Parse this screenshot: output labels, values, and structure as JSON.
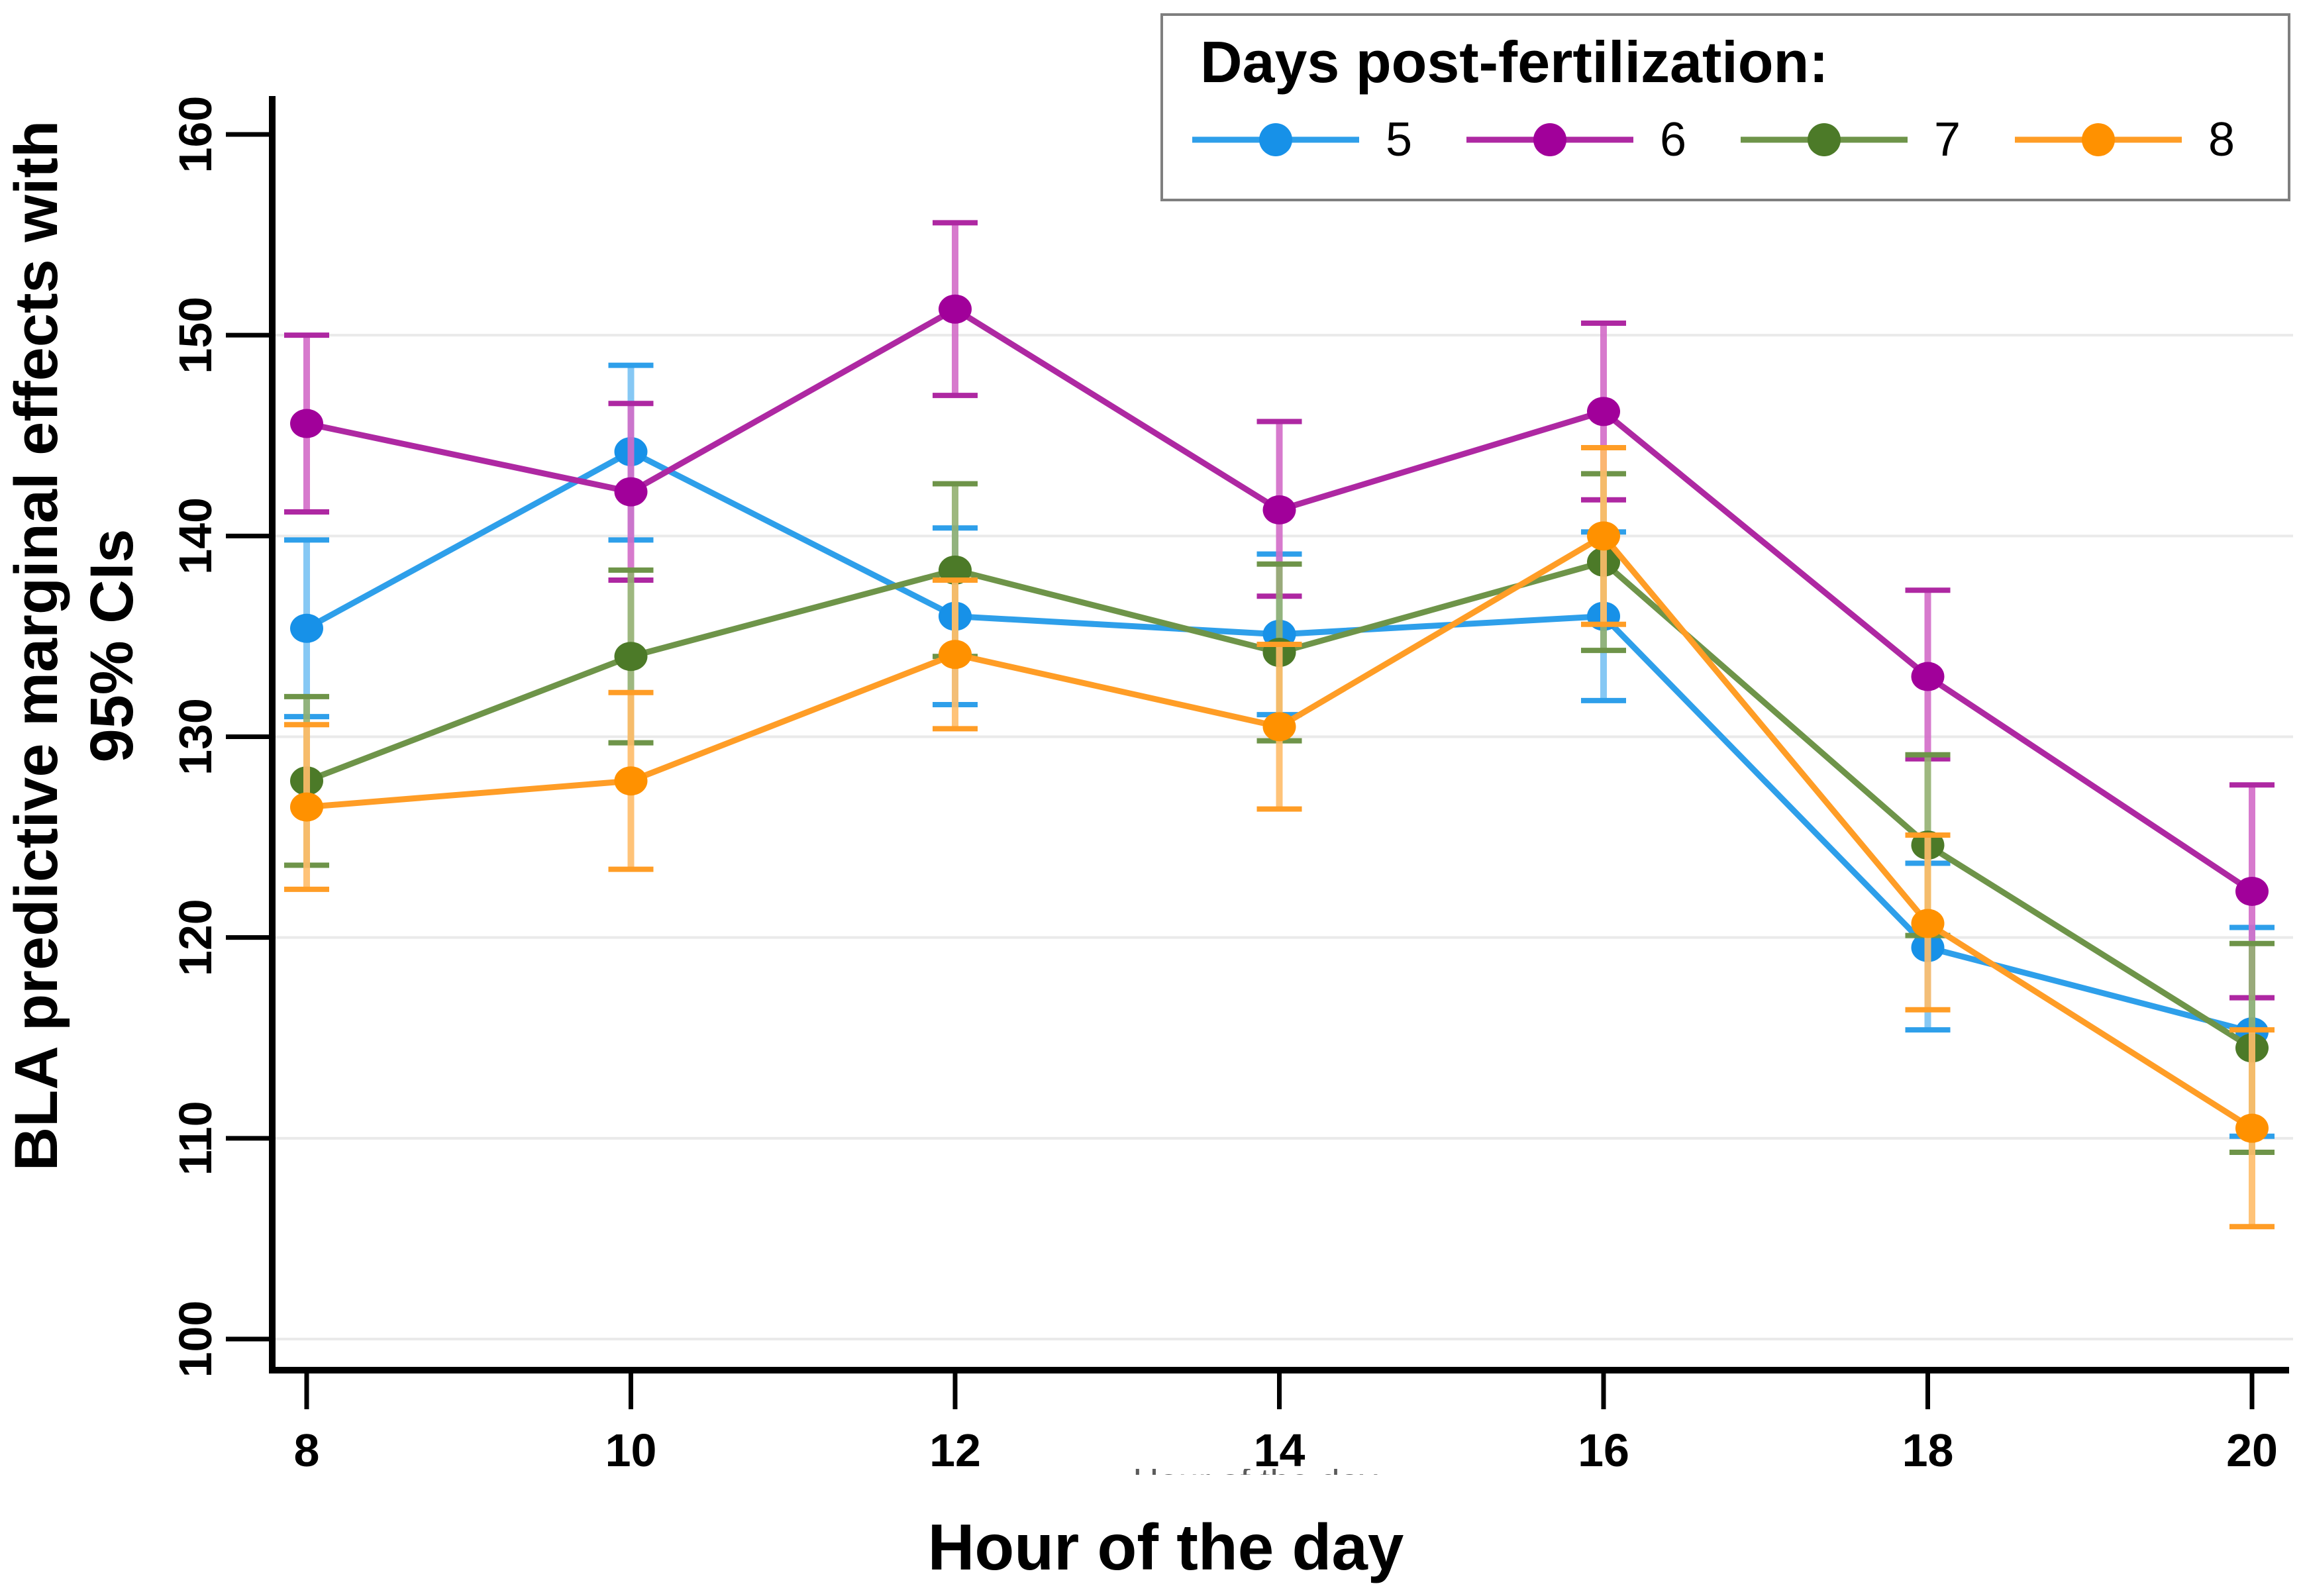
{
  "chart_data": {
    "type": "line",
    "title": "",
    "xlabel": "Hour of the day",
    "ylabel": "BLA predictive marginal effects with 95% CIs",
    "legend_title": "Days post-fertilization:",
    "legend_position": "top-right",
    "grid": "horizontal",
    "cropped_axis_text": "Hour of the day",
    "x": [
      8,
      10,
      12,
      14,
      16,
      18,
      20
    ],
    "xticks": [
      "8",
      "10",
      "12",
      "14",
      "16",
      "18",
      "20"
    ],
    "yticks": [
      "100",
      "110",
      "120",
      "130",
      "140",
      "150",
      "160"
    ],
    "xlim": [
      7.8,
      20.3
    ],
    "ylim": [
      100,
      160
    ],
    "axis_color": "#000000",
    "grid_color": "#EAEAEA",
    "series": [
      {
        "label": "5",
        "color": "#1791E8",
        "line_color": "#2E9FEA",
        "ci_color": "#79C2F3",
        "values": [
          135.4,
          144.2,
          136.0,
          135.1,
          136.0,
          119.5,
          115.3
        ],
        "ci_low": [
          131.0,
          139.8,
          131.6,
          131.1,
          131.8,
          115.4,
          110.1
        ],
        "ci_high": [
          139.8,
          148.5,
          140.4,
          139.1,
          140.2,
          123.7,
          120.5
        ]
      },
      {
        "label": "6",
        "color": "#A1009A",
        "line_color": "#AE28A2",
        "ci_color": "#D36CC8",
        "values": [
          145.6,
          142.2,
          151.3,
          141.3,
          146.2,
          133.0,
          122.3
        ],
        "ci_low": [
          141.2,
          137.8,
          147.0,
          137.0,
          141.8,
          128.9,
          117.0
        ],
        "ci_high": [
          150.0,
          146.6,
          155.6,
          145.7,
          150.6,
          137.3,
          127.6
        ]
      },
      {
        "label": "7",
        "color": "#4C7A28",
        "line_color": "#6E9449",
        "ci_color": "#93B071",
        "values": [
          127.8,
          134.0,
          138.3,
          134.2,
          138.7,
          124.6,
          114.5
        ],
        "ci_low": [
          123.6,
          129.7,
          134.0,
          129.8,
          134.3,
          120.1,
          109.3
        ],
        "ci_high": [
          132.0,
          138.3,
          142.6,
          138.6,
          143.1,
          129.1,
          119.7
        ]
      },
      {
        "label": "8",
        "color": "#FF9100",
        "line_color": "#FF9D26",
        "ci_color": "#FFBC69",
        "values": [
          126.5,
          127.8,
          134.1,
          130.5,
          140.0,
          120.7,
          110.5
        ],
        "ci_low": [
          122.4,
          123.4,
          130.4,
          126.4,
          135.6,
          116.4,
          105.6
        ],
        "ci_high": [
          130.6,
          132.2,
          137.8,
          134.6,
          144.4,
          125.1,
          115.4
        ]
      }
    ]
  }
}
